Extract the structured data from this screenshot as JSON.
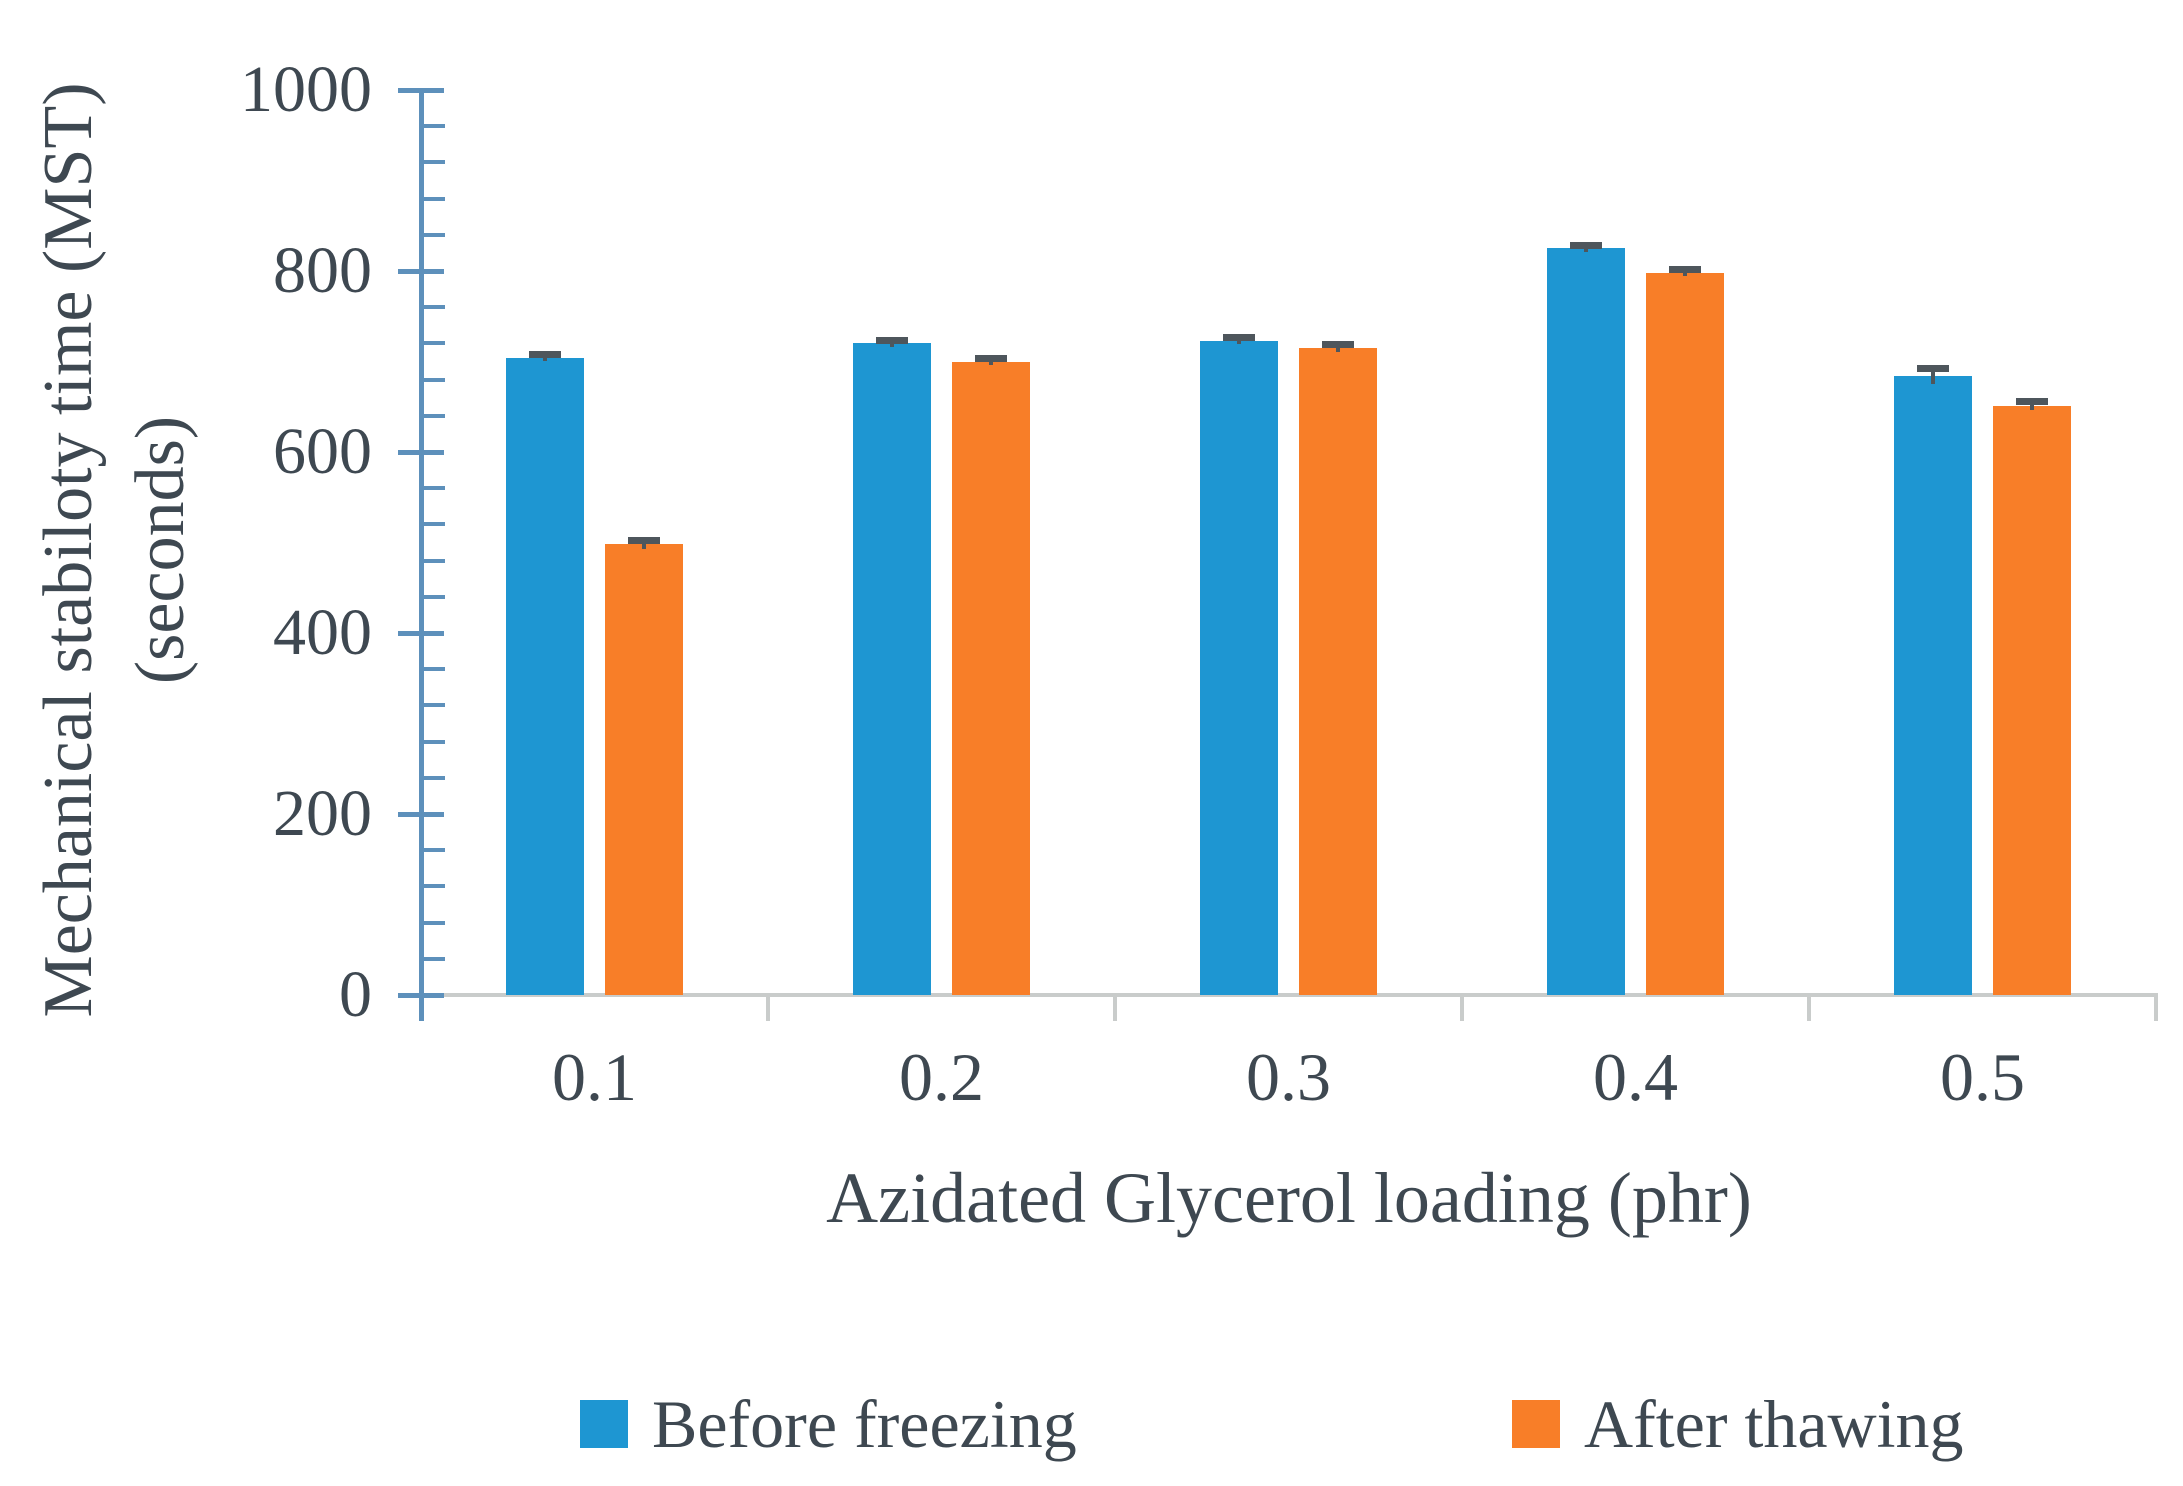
{
  "chart_data": {
    "type": "bar",
    "title": "",
    "xlabel": "Azidated Glycerol loading (phr)",
    "ylabel_line1": "Mechanical stabiloty time (MST)",
    "ylabel_line2": "(seconds)",
    "categories": [
      "0.1",
      "0.2",
      "0.3",
      "0.4",
      "0.5"
    ],
    "series": [
      {
        "name": "Before freezing",
        "color": "#1E96D2",
        "values": [
          704,
          720,
          723,
          825,
          684
        ],
        "errors": [
          4,
          4,
          4,
          4,
          9
        ]
      },
      {
        "name": "After thawing",
        "color": "#F87E28",
        "values": [
          498,
          700,
          715,
          798,
          651
        ],
        "errors": [
          5,
          4,
          4,
          4,
          5
        ]
      }
    ],
    "ylim": [
      0,
      1000
    ],
    "ytick_major": 200,
    "ytick_minor": 40,
    "yticks": [
      "0",
      "200",
      "400",
      "600",
      "800",
      "1000"
    ],
    "legend_position": "bottom",
    "grid": "off",
    "error_bars": "y, caps at bar tops"
  },
  "colors": {
    "axis_blue": "#5D90BB",
    "baseline_gray": "#C9CCCB",
    "text": "#3E4851",
    "error_bar": "#4E565C",
    "background": "#FFFFFF"
  }
}
